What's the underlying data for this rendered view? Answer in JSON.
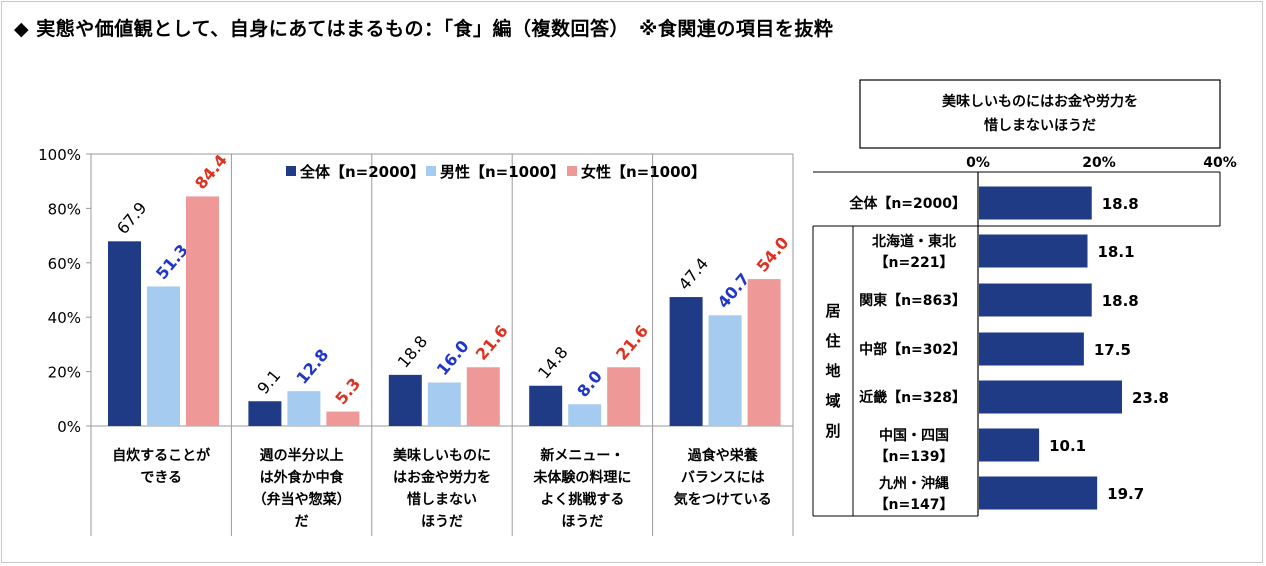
{
  "page": {
    "title": "◆ 実態や価値観として、自身にあてはまるもの：「食」編（複数回答）　※食関連の項目を抜粋"
  },
  "colors": {
    "all": "#1f3b85",
    "male": "#a6cbf0",
    "female": "#ee9898",
    "male_label": "#1f36c8",
    "female_label": "#e03020"
  },
  "chart_data": [
    {
      "type": "bar",
      "title": "",
      "ylim": [
        0,
        100
      ],
      "yticks": [
        "0%",
        "20%",
        "40%",
        "60%",
        "80%",
        "100%"
      ],
      "categories": [
        [
          "自炊することが",
          "できる"
        ],
        [
          "週の半分以上",
          "は外食か中食",
          "（弁当や惣菜）",
          "だ"
        ],
        [
          "美味しいものに",
          "はお金や労力を",
          "惜しまない",
          "ほうだ"
        ],
        [
          "新メニュー・",
          "未体験の料理に",
          "よく挑戦する",
          "ほうだ"
        ],
        [
          "過食や栄養",
          "バランスには",
          "気をつけている"
        ]
      ],
      "series": [
        {
          "name": "全体【n=2000】",
          "values": [
            67.9,
            9.1,
            18.8,
            14.8,
            47.4
          ]
        },
        {
          "name": "男性【n=1000】",
          "values": [
            51.3,
            12.8,
            16.0,
            8.0,
            40.7
          ]
        },
        {
          "name": "女性【n=1000】",
          "values": [
            84.4,
            5.3,
            21.6,
            21.6,
            54.0
          ]
        }
      ],
      "legend": "top",
      "grid": false
    },
    {
      "type": "bar",
      "orientation": "horizontal",
      "title": "美味しいものにはお金や労力を\n惜しまないほうだ",
      "title_lines": [
        "美味しいものにはお金や労力を",
        "惜しまないほうだ"
      ],
      "xlim": [
        0,
        40
      ],
      "xticks": [
        "0%",
        "20%",
        "40%"
      ],
      "group_label": [
        "居",
        "住",
        "地",
        "域",
        "別"
      ],
      "categories": [
        [
          "全体【n=2000】"
        ],
        [
          "北海道・東北",
          "【n=221】"
        ],
        [
          "関東【n=863】"
        ],
        [
          "中部【n=302】"
        ],
        [
          "近畿【n=328】"
        ],
        [
          "中国・四国",
          "【n=139】"
        ],
        [
          "九州・沖縄",
          "【n=147】"
        ]
      ],
      "values": [
        18.8,
        18.1,
        18.8,
        17.5,
        23.8,
        10.1,
        19.7
      ],
      "value_labels": [
        "18.8",
        "18.1",
        "18.8",
        "17.5",
        "23.8",
        "10.1",
        "19.7"
      ],
      "grid": false
    }
  ]
}
